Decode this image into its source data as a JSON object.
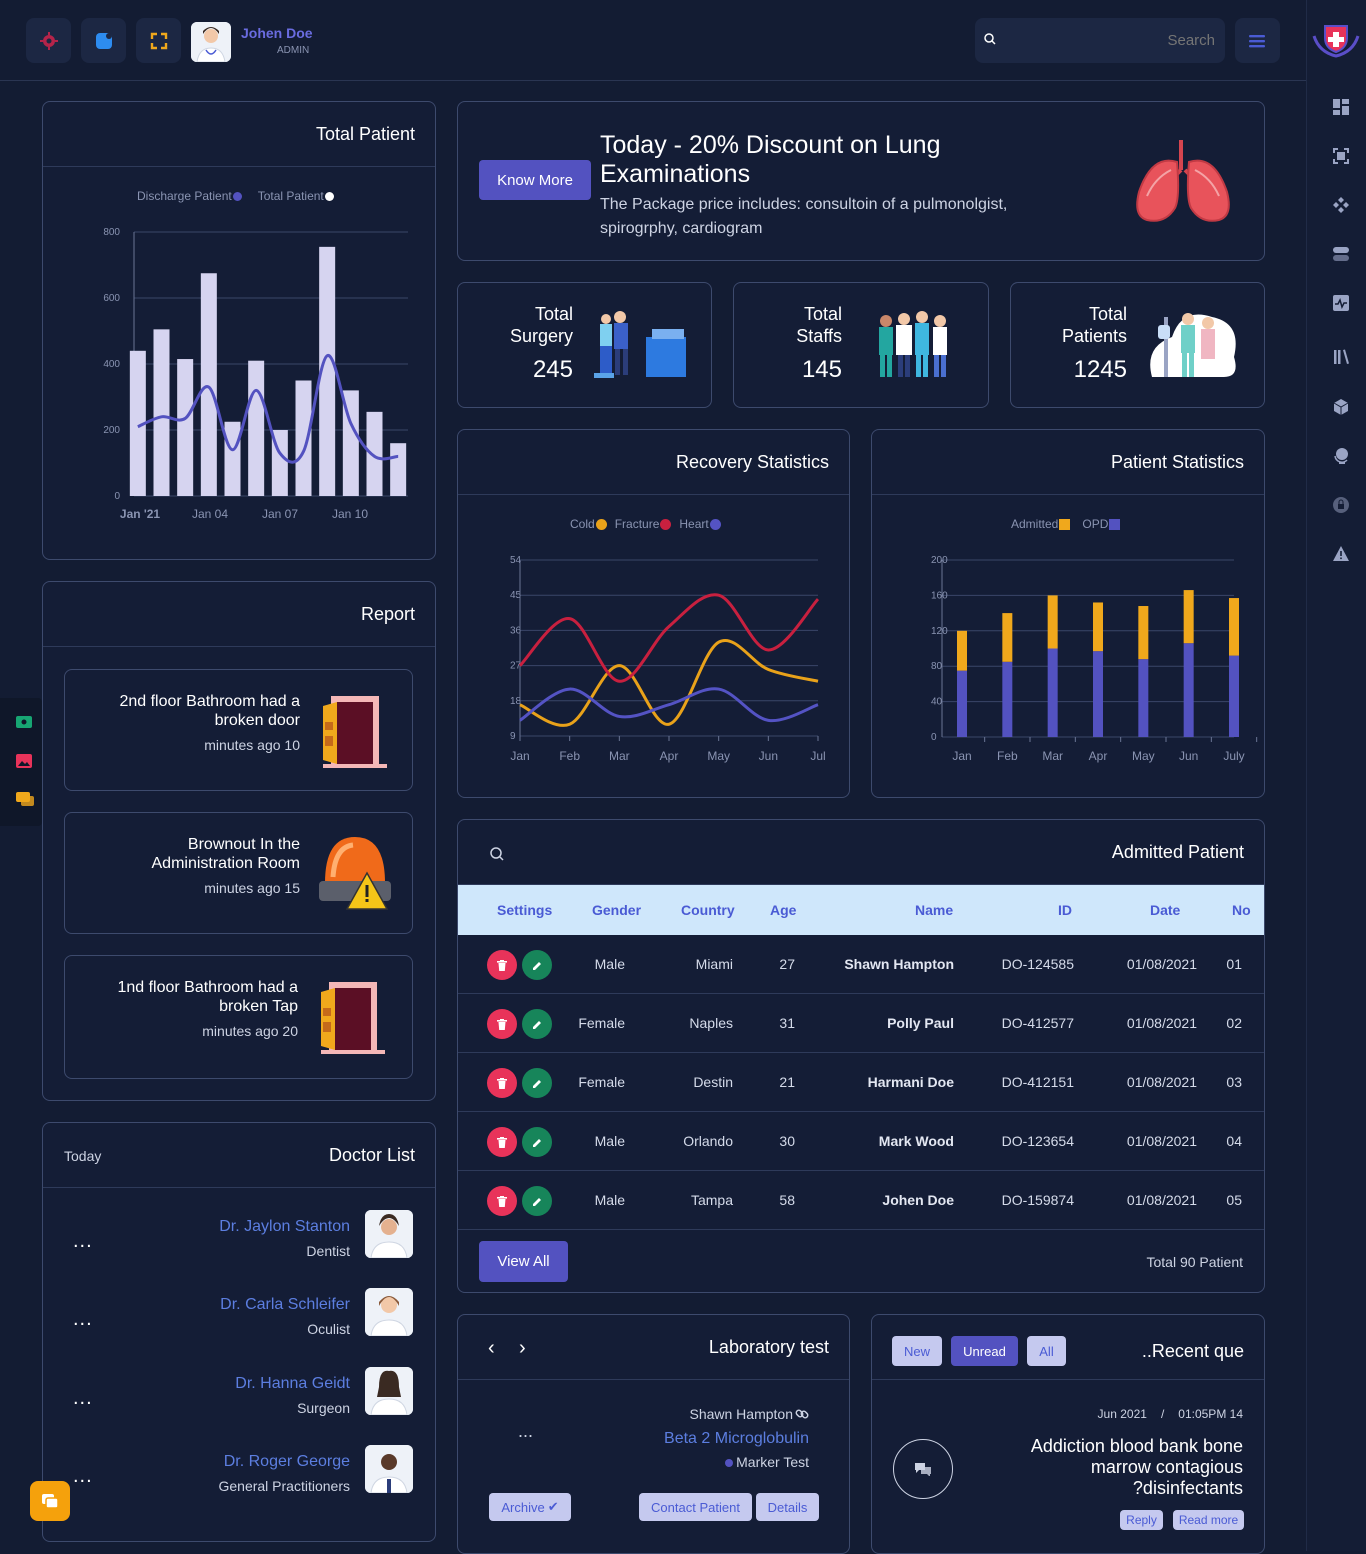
{
  "topbar": {
    "user_name": "Johen Doe",
    "user_role": "ADMIN",
    "search_placeholder": "Search"
  },
  "total_patient": {
    "title": "Total Patient",
    "legend": [
      "Discharge Patient",
      "Total Patient"
    ]
  },
  "promo": {
    "button": "Know More",
    "title": "Today - 20% Discount on Lung Examinations",
    "desc": "The Package price includes: consultoin of a pulmonolgist, spirogrphy, cardiogram"
  },
  "stats": [
    {
      "label1": "Total",
      "label2": "Surgery",
      "value": "245"
    },
    {
      "label1": "Total",
      "label2": "Staffs",
      "value": "145"
    },
    {
      "label1": "Total",
      "label2": "Patients",
      "value": "1245"
    }
  ],
  "recovery": {
    "title": "Recovery Statistics"
  },
  "patient_stats": {
    "title": "Patient Statistics"
  },
  "chart_data": [
    {
      "type": "bar",
      "title": "Total Patient",
      "x_tick_labels": [
        "Jan '21",
        "Jan 04",
        "Jan 07",
        "Jan 10"
      ],
      "ylim": [
        0,
        800
      ],
      "yticks": [
        0,
        200,
        400,
        600,
        800
      ],
      "legend_position": "top",
      "grid": true,
      "series": [
        {
          "name": "Total Patient",
          "type": "bar",
          "color": "#d6d4f0",
          "values": [
            440,
            505,
            415,
            675,
            225,
            410,
            200,
            350,
            755,
            320,
            255,
            160
          ]
        },
        {
          "name": "Discharge Patient",
          "type": "line",
          "color": "#5352c0",
          "values": [
            210,
            240,
            235,
            330,
            140,
            320,
            130,
            135,
            425,
            220,
            120,
            120
          ]
        }
      ]
    },
    {
      "type": "line",
      "title": "Recovery Statistics",
      "categories": [
        "Jan",
        "Feb",
        "Mar",
        "Apr",
        "May",
        "Jun",
        "Jul"
      ],
      "ylim": [
        9,
        54
      ],
      "yticks": [
        9,
        18,
        27,
        36,
        45,
        54
      ],
      "legend_position": "top",
      "series": [
        {
          "name": "Cold",
          "color": "#e9a21a",
          "values": [
            17,
            12,
            27,
            12,
            33,
            26,
            23
          ]
        },
        {
          "name": "Fracture",
          "color": "#c8203f",
          "values": [
            27,
            39,
            23,
            37,
            45,
            31,
            44
          ]
        },
        {
          "name": "Heart",
          "color": "#5453c4",
          "values": [
            13,
            21,
            14,
            17,
            21,
            13,
            17
          ]
        }
      ]
    },
    {
      "type": "bar",
      "stacked": true,
      "title": "Patient Statistics",
      "categories": [
        "Jan",
        "Feb",
        "Mar",
        "Apr",
        "May",
        "Jun",
        "July"
      ],
      "ylim": [
        0,
        200
      ],
      "yticks": [
        0,
        40,
        80,
        120,
        160,
        200
      ],
      "legend_position": "top",
      "series": [
        {
          "name": "Admitted",
          "color": "#f0a81c",
          "values": [
            45,
            55,
            60,
            55,
            60,
            60,
            65
          ]
        },
        {
          "name": "OPD",
          "color": "#5352c0",
          "values": [
            75,
            85,
            100,
            97,
            88,
            106,
            92
          ]
        }
      ]
    }
  ],
  "report": {
    "title": "Report",
    "items": [
      {
        "line1": "2nd floor Bathroom had a",
        "line2": "broken door",
        "time": "minutes ago 10"
      },
      {
        "line1": "Brownout In the",
        "line2": "Administration Room",
        "time": "minutes ago 15"
      },
      {
        "line1": "1nd floor Bathroom had a",
        "line2": "broken Tap",
        "time": "minutes ago 20"
      }
    ]
  },
  "doctors": {
    "title": "Doctor List",
    "subtitle": "Today",
    "items": [
      {
        "name": "Dr. Jaylon Stanton",
        "role": "Dentist"
      },
      {
        "name": "Dr. Carla Schleifer",
        "role": "Oculist"
      },
      {
        "name": "Dr. Hanna Geidt",
        "role": "Surgeon"
      },
      {
        "name": "Dr. Roger George",
        "role": "General Practitioners"
      }
    ],
    "menu": "..."
  },
  "admitted": {
    "title": "Admitted Patient",
    "columns": [
      "Settings",
      "Gender",
      "Country",
      "Age",
      "Name",
      "ID",
      "Date",
      "No"
    ],
    "rows": [
      {
        "gender": "Male",
        "country": "Miami",
        "age": "27",
        "name": "Shawn Hampton",
        "id": "DO-124585",
        "date": "01/08/2021",
        "no": "01"
      },
      {
        "gender": "Female",
        "country": "Naples",
        "age": "31",
        "name": "Polly Paul",
        "id": "DO-412577",
        "date": "01/08/2021",
        "no": "02"
      },
      {
        "gender": "Female",
        "country": "Destin",
        "age": "21",
        "name": "Harmani Doe",
        "id": "DO-412151",
        "date": "01/08/2021",
        "no": "03"
      },
      {
        "gender": "Male",
        "country": "Orlando",
        "age": "30",
        "name": "Mark Wood",
        "id": "DO-123654",
        "date": "01/08/2021",
        "no": "04"
      },
      {
        "gender": "Male",
        "country": "Tampa",
        "age": "58",
        "name": "Johen Doe",
        "id": "DO-159874",
        "date": "01/08/2021",
        "no": "05"
      }
    ],
    "view_all": "View All",
    "total": "Total 90 Patient"
  },
  "lab": {
    "title": "Laboratory test",
    "patient": "Shawn Hampton",
    "test": "Beta 2 Microglobulin",
    "type": "Marker Test",
    "menu": "...",
    "archive": "Archive",
    "contact": "Contact Patient",
    "details": "Details"
  },
  "recent": {
    "title": "..Recent que",
    "tabs": [
      "New",
      "Unread",
      "All"
    ],
    "date": "Jun 2021",
    "sep": "/",
    "time": "01:05PM 14",
    "question_lines": [
      "Addiction blood bank bone",
      "marrow contagious",
      "?disinfectants"
    ],
    "reply": "Reply",
    "read_more": "Read more"
  },
  "colors": {
    "accent": "#5352c0",
    "danger": "#e8335a",
    "success": "#17855a",
    "table_header": "#cfe7fb"
  }
}
